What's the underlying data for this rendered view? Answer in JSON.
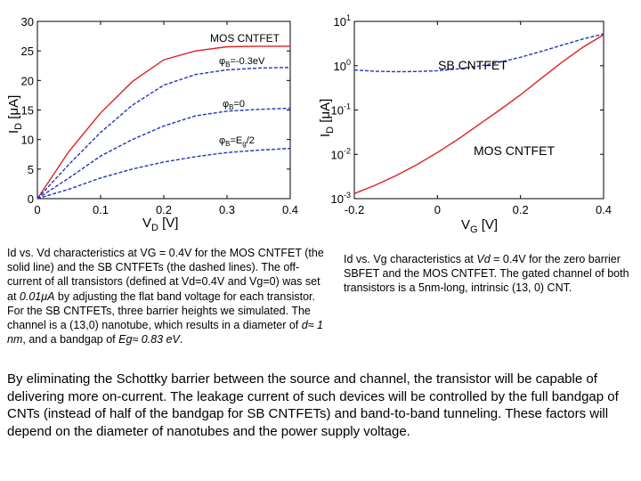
{
  "chart_data": [
    {
      "type": "line",
      "xlabel": {
        "main": "V",
        "sub": "D",
        "unit": " [V]"
      },
      "ylabel": {
        "main": "I",
        "sub": "D",
        "unit": " [",
        "mu": "μ",
        "unit2": "A]"
      },
      "xlim": [
        0,
        0.4
      ],
      "ylim": [
        0,
        30
      ],
      "xticks": [
        0,
        0.1,
        0.2,
        0.3,
        0.4
      ],
      "xtick_labels": [
        "0",
        "0.1",
        "0.2",
        "0.3",
        "0.4"
      ],
      "yticks": [
        0,
        5,
        10,
        15,
        20,
        25,
        30
      ],
      "ytick_labels": [
        "0",
        "5",
        "10",
        "15",
        "20",
        "25",
        "30"
      ],
      "grid": false,
      "series": [
        {
          "name": "MOS CNTFET",
          "style": "solid",
          "color": "#dd2222",
          "x": [
            0,
            0.05,
            0.1,
            0.15,
            0.2,
            0.25,
            0.3,
            0.35,
            0.4
          ],
          "y": [
            0,
            8,
            14.5,
            19.8,
            23.5,
            25,
            25.7,
            25.8,
            25.8
          ]
        },
        {
          "name": "φB=-0.3eV",
          "style": "dashed",
          "color": "#2233bb",
          "x": [
            0,
            0.05,
            0.1,
            0.15,
            0.2,
            0.25,
            0.3,
            0.35,
            0.4
          ],
          "y": [
            0,
            5.8,
            11.2,
            15.8,
            19.2,
            21,
            21.8,
            22.1,
            22.2
          ]
        },
        {
          "name": "φB=0",
          "style": "dashed",
          "color": "#2233bb",
          "x": [
            0,
            0.05,
            0.1,
            0.15,
            0.2,
            0.25,
            0.3,
            0.35,
            0.4
          ],
          "y": [
            0,
            3.5,
            7.2,
            10,
            12.3,
            14,
            14.8,
            15.1,
            15.3
          ]
        },
        {
          "name": "φB=Eg/2",
          "style": "dashed",
          "color": "#2233bb",
          "x": [
            0,
            0.05,
            0.1,
            0.15,
            0.2,
            0.25,
            0.3,
            0.35,
            0.4
          ],
          "y": [
            0,
            1.6,
            3.5,
            5,
            6.2,
            7.1,
            7.8,
            8.2,
            8.5
          ]
        }
      ],
      "annotations": [
        {
          "text": "MOS CNTFET"
        },
        {
          "main": "φ",
          "sub": "B",
          "rest": "=-0.3eV"
        },
        {
          "main": "φ",
          "sub": "B",
          "rest": "=0"
        },
        {
          "main": "φ",
          "sub": "B",
          "rest": "=E",
          "sub2": "g",
          "rest2": "/2"
        }
      ]
    },
    {
      "type": "line",
      "xlabel": {
        "main": "V",
        "sub": "G",
        "unit": " [V]"
      },
      "ylabel": {
        "main": "I",
        "sub": "D",
        "unit": " [",
        "mu": "μ",
        "unit2": "A]"
      },
      "xlim": [
        -0.2,
        0.4
      ],
      "ylim": [
        0.001,
        10
      ],
      "yscale": "log",
      "xticks": [
        -0.2,
        0,
        0.2,
        0.4
      ],
      "xtick_labels": [
        "-0.2",
        "0",
        "0.2",
        "0.4"
      ],
      "yticks": [
        0.001,
        0.01,
        0.1,
        1,
        10
      ],
      "ytick_labels": [
        {
          "base": "10",
          "exp": "-3"
        },
        {
          "base": "10",
          "exp": "-2"
        },
        {
          "base": "10",
          "exp": "-1"
        },
        {
          "base": "10",
          "exp": "0"
        },
        {
          "base": "10",
          "exp": "1"
        }
      ],
      "grid": false,
      "series": [
        {
          "name": "MOS CNTFET",
          "style": "solid",
          "color": "#dd2222",
          "x": [
            -0.2,
            -0.15,
            -0.1,
            -0.05,
            0,
            0.05,
            0.1,
            0.15,
            0.2,
            0.25,
            0.3,
            0.35,
            0.4
          ],
          "y": [
            0.0013,
            0.002,
            0.0033,
            0.0058,
            0.011,
            0.022,
            0.047,
            0.1,
            0.22,
            0.52,
            1.2,
            2.6,
            5.0
          ]
        },
        {
          "name": "SB CNTFET",
          "style": "dashed",
          "color": "#2233bb",
          "x": [
            -0.2,
            -0.15,
            -0.1,
            -0.05,
            0,
            0.05,
            0.1,
            0.15,
            0.2,
            0.25,
            0.3,
            0.35,
            0.4
          ],
          "y": [
            0.8,
            0.75,
            0.73,
            0.74,
            0.77,
            0.85,
            0.98,
            1.2,
            1.55,
            2.1,
            2.9,
            4.0,
            5.2
          ]
        }
      ],
      "annotations": [
        {
          "text": "SB CNTFET"
        },
        {
          "text": "MOS CNTFET"
        }
      ]
    }
  ],
  "captions": {
    "left": {
      "a": "Id vs. Vd characteristics at VG = 0.4V for the MOS CNTFET (the solid line) and the SB CNTFETs (the dashed lines). The off-current of all transistors (defined at Vd=0.4V and Vg=0) was set at ",
      "b": "0.01μA",
      "c": " by adjusting the flat band voltage for each transistor. For the SB CNTFETs, three barrier heights we simulated. The channel is a (13,0) nanotube, which results in a diameter of ",
      "d": "d≈ 1 nm",
      "e": ", and a bandgap of ",
      "f": "Eg≈ 0.83 eV",
      "g": "."
    },
    "right": {
      "a": "Id vs. Vg characteristics at ",
      "b": "Vd",
      "c": " = 0.4V for the zero barrier SBFET and the MOS CNTFET. The gated channel of both transistors is a 5nm-long, intrinsic (13, 0) CNT."
    }
  },
  "paragraph": "By eliminating the Schottky barrier between the source and channel, the transistor will be capable of delivering more on-current. The leakage current of such devices will be controlled by the full bandgap of CNTs (instead of half of the bandgap for SB CNTFETs) and band-to-band tunneling. These factors will depend on the diameter of nanotubes and the power supply voltage."
}
